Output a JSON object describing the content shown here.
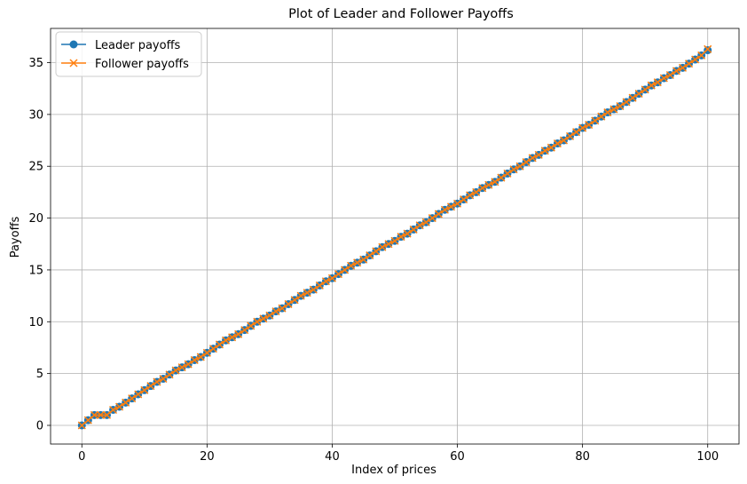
{
  "chart_data": {
    "type": "line",
    "title": "Plot of Leader and Follower Payoffs",
    "xlabel": "Index of prices",
    "ylabel": "Payoffs",
    "xlim": [
      -5,
      105
    ],
    "ylim": [
      -1.8,
      38.3
    ],
    "xticks": [
      0,
      20,
      40,
      60,
      80,
      100
    ],
    "yticks": [
      0,
      5,
      10,
      15,
      20,
      25,
      30,
      35
    ],
    "grid": true,
    "legend": "top-left",
    "x": [
      0,
      1,
      2,
      3,
      4,
      5,
      6,
      7,
      8,
      9,
      10,
      11,
      12,
      13,
      14,
      15,
      16,
      17,
      18,
      19,
      20,
      21,
      22,
      23,
      24,
      25,
      26,
      27,
      28,
      29,
      30,
      31,
      32,
      33,
      34,
      35,
      36,
      37,
      38,
      39,
      40,
      41,
      42,
      43,
      44,
      45,
      46,
      47,
      48,
      49,
      50,
      51,
      52,
      53,
      54,
      55,
      56,
      57,
      58,
      59,
      60,
      61,
      62,
      63,
      64,
      65,
      66,
      67,
      68,
      69,
      70,
      71,
      72,
      73,
      74,
      75,
      76,
      77,
      78,
      79,
      80,
      81,
      82,
      83,
      84,
      85,
      86,
      87,
      88,
      89,
      90,
      91,
      92,
      93,
      94,
      95,
      96,
      97,
      98,
      99,
      100
    ],
    "series": [
      {
        "name": "Leader payoffs",
        "color": "#1f77b4",
        "marker": "circle",
        "values": [
          0,
          0.5,
          1,
          1,
          1,
          1.5,
          1.8,
          2.2,
          2.6,
          3,
          3.4,
          3.8,
          4.2,
          4.5,
          4.9,
          5.3,
          5.6,
          5.9,
          6.3,
          6.6,
          7,
          7.4,
          7.8,
          8.2,
          8.5,
          8.8,
          9.2,
          9.6,
          10,
          10.3,
          10.6,
          11,
          11.3,
          11.7,
          12.1,
          12.5,
          12.8,
          13.1,
          13.5,
          13.9,
          14.2,
          14.6,
          15,
          15.4,
          15.7,
          16,
          16.4,
          16.8,
          17.2,
          17.5,
          17.8,
          18.2,
          18.5,
          18.9,
          19.3,
          19.6,
          20,
          20.4,
          20.8,
          21.1,
          21.4,
          21.8,
          22.2,
          22.5,
          22.9,
          23.2,
          23.5,
          23.9,
          24.3,
          24.7,
          25,
          25.4,
          25.8,
          26.1,
          26.5,
          26.8,
          27.2,
          27.5,
          27.9,
          28.3,
          28.7,
          29,
          29.4,
          29.8,
          30.2,
          30.5,
          30.8,
          31.2,
          31.6,
          32,
          32.4,
          32.8,
          33.1,
          33.5,
          33.8,
          34.2,
          34.5,
          34.9,
          35.3,
          35.7,
          36.2
        ]
      },
      {
        "name": "Follower payoffs",
        "color": "#ff7f0e",
        "marker": "x",
        "values": [
          0,
          0.5,
          1,
          1,
          1,
          1.5,
          1.8,
          2.2,
          2.6,
          3,
          3.4,
          3.8,
          4.2,
          4.5,
          4.9,
          5.3,
          5.6,
          5.9,
          6.3,
          6.6,
          7,
          7.4,
          7.8,
          8.2,
          8.5,
          8.8,
          9.2,
          9.6,
          10,
          10.3,
          10.6,
          11,
          11.3,
          11.7,
          12.1,
          12.5,
          12.8,
          13.1,
          13.5,
          13.9,
          14.2,
          14.6,
          15,
          15.4,
          15.7,
          16,
          16.4,
          16.8,
          17.2,
          17.5,
          17.8,
          18.2,
          18.5,
          18.9,
          19.3,
          19.6,
          20,
          20.4,
          20.8,
          21.1,
          21.4,
          21.8,
          22.2,
          22.5,
          22.9,
          23.2,
          23.5,
          23.9,
          24.3,
          24.7,
          25,
          25.4,
          25.8,
          26.1,
          26.5,
          26.8,
          27.2,
          27.5,
          27.9,
          28.3,
          28.7,
          29,
          29.4,
          29.8,
          30.2,
          30.5,
          30.8,
          31.2,
          31.6,
          32,
          32.4,
          32.8,
          33.1,
          33.5,
          33.8,
          34.2,
          34.5,
          34.9,
          35.3,
          35.7,
          36.3
        ]
      }
    ]
  }
}
